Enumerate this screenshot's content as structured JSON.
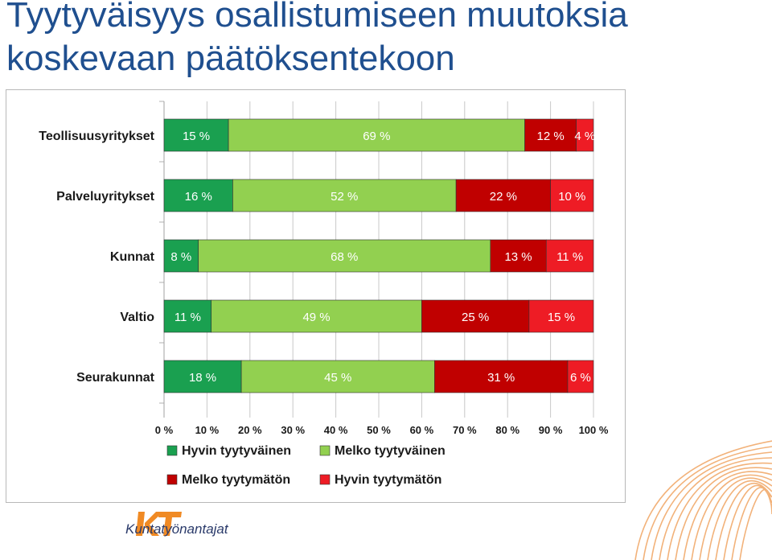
{
  "slide": {
    "title_line1": "Tyytyväisyys osallistumiseen muutoksia",
    "title_line2": "koskevaan päätöksentekoon"
  },
  "logo": {
    "mark": "KT",
    "text": "Kuntatyönantajat"
  },
  "chart_data": {
    "type": "bar",
    "orientation": "horizontal-stacked-100",
    "categories": [
      "Teollisuusyritykset",
      "Palveluyritykset",
      "Kunnat",
      "Valtio",
      "Seurakunnat"
    ],
    "series": [
      {
        "name": "Hyvin tyytyväinen",
        "color": "#1aa050",
        "values": [
          15,
          16,
          8,
          11,
          18
        ],
        "labels": [
          "15 %",
          "16 %",
          "8 %",
          "11 %",
          "18 %"
        ]
      },
      {
        "name": "Melko tyytyväinen",
        "color": "#92d050",
        "values": [
          69,
          52,
          68,
          49,
          45
        ],
        "labels": [
          "69 %",
          "52 %",
          "68 %",
          "49 %",
          "45 %"
        ]
      },
      {
        "name": "Melko tyytymätön",
        "color": "#c00000",
        "values": [
          12,
          22,
          13,
          25,
          31
        ],
        "labels": [
          "12 %",
          "22 %",
          "13 %",
          "25 %",
          "31 %"
        ]
      },
      {
        "name": "Hyvin tyytymätön",
        "color": "#ee1c25",
        "values": [
          4,
          10,
          11,
          15,
          6
        ],
        "labels": [
          "4 %",
          "10 %",
          "11 %",
          "15 %",
          "6 %"
        ]
      }
    ],
    "xlim": [
      0,
      100
    ],
    "xticks": [
      "0 %",
      "10 %",
      "20 %",
      "30 %",
      "40 %",
      "50 %",
      "60 %",
      "70 %",
      "80 %",
      "90 %",
      "100 %"
    ],
    "grid": true,
    "legend": "bottom"
  }
}
